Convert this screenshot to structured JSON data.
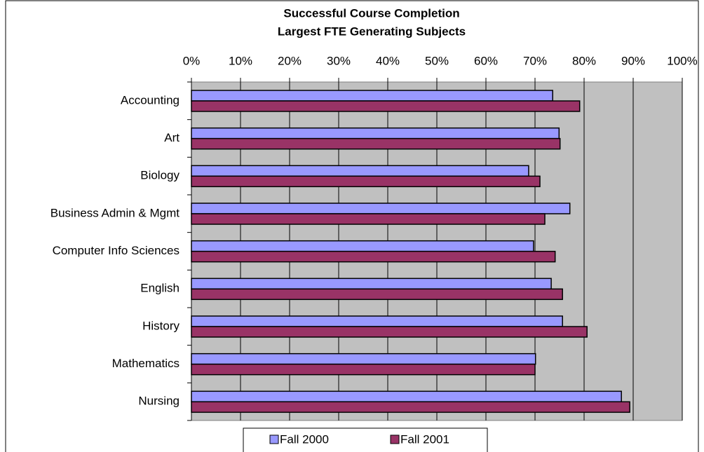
{
  "chart_data": {
    "type": "hbar",
    "title": "Successful Course Completion",
    "subtitle": "Largest FTE Generating Subjects",
    "categories": [
      "Accounting",
      "Art",
      "Biology",
      "Business Admin & Mgmt",
      "Computer Info Sciences",
      "English",
      "History",
      "Mathematics",
      "Nursing"
    ],
    "series": [
      {
        "name": "Fall 2000",
        "color": "#9999ff",
        "values": [
          73.6,
          74.9,
          68.7,
          77.1,
          69.7,
          73.3,
          75.6,
          70.1,
          87.6
        ]
      },
      {
        "name": "Fall 2001",
        "color": "#993366",
        "values": [
          79.1,
          75.1,
          71.0,
          72.0,
          74.1,
          75.6,
          80.6,
          70.0,
          89.3
        ]
      }
    ],
    "xlim": [
      0,
      100
    ],
    "xticks": [
      {
        "value": 0,
        "label": "0%"
      },
      {
        "value": 10,
        "label": "10%"
      },
      {
        "value": 20,
        "label": "20%"
      },
      {
        "value": 30,
        "label": "30%"
      },
      {
        "value": 40,
        "label": "40%"
      },
      {
        "value": 50,
        "label": "50%"
      },
      {
        "value": 60,
        "label": "60%"
      },
      {
        "value": 70,
        "label": "70%"
      },
      {
        "value": 80,
        "label": "80%"
      },
      {
        "value": 90,
        "label": "90%"
      },
      {
        "value": 100,
        "label": "100%"
      }
    ],
    "grid": true,
    "plot_background": "#c0c0c0",
    "legend": "bottom"
  }
}
